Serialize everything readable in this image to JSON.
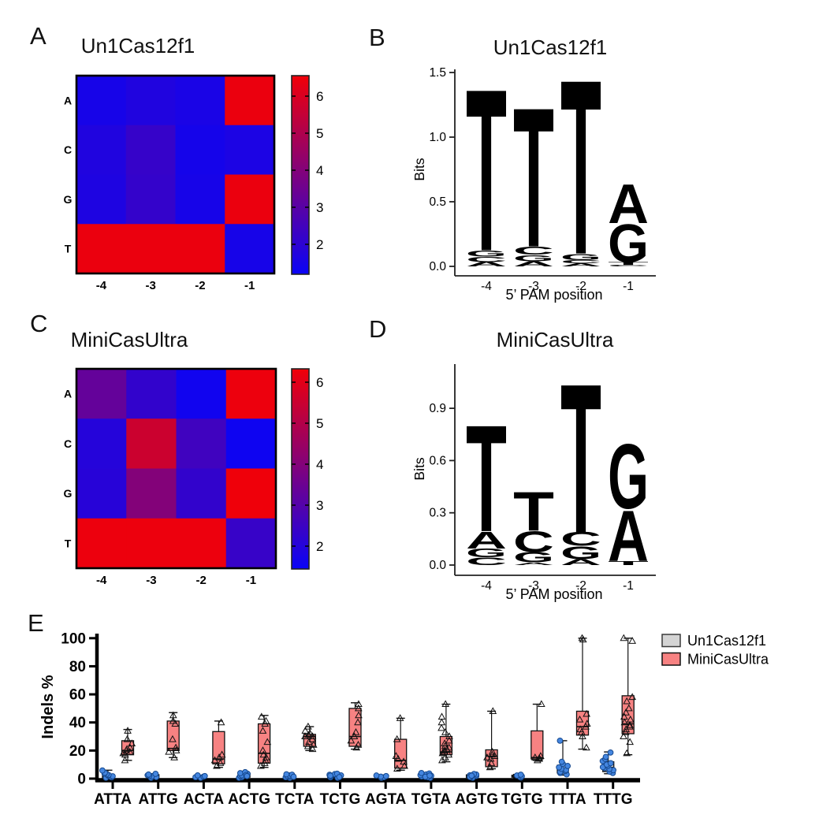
{
  "panels": {
    "A": {
      "label": "A"
    },
    "B": {
      "label": "B"
    },
    "C": {
      "label": "C"
    },
    "D": {
      "label": "D"
    },
    "E": {
      "label": "E"
    }
  },
  "legend": {
    "items": [
      {
        "label": "Un1Cas12f1",
        "color": "#d4d4d4",
        "border": "#3a3a3a"
      },
      {
        "label": "MiniCasUltra",
        "color": "#f78282",
        "border": "#111111"
      }
    ]
  },
  "logo_colors": {
    "A": "#168a48",
    "C": "#2b5f9e",
    "G": "#e9a63b",
    "T": "#c62f41"
  },
  "chart_data": [
    {
      "type": "heatmap",
      "panel": "A",
      "title": "Un1Cas12f1",
      "rows": [
        "A",
        "C",
        "G",
        "T"
      ],
      "cols": [
        "-4",
        "-3",
        "-2",
        "-1"
      ],
      "values": [
        [
          1.5,
          1.7,
          1.55,
          6.4
        ],
        [
          1.7,
          2.2,
          1.45,
          1.6
        ],
        [
          1.65,
          2.15,
          1.5,
          6.4
        ],
        [
          6.4,
          6.4,
          6.4,
          1.5
        ]
      ],
      "scale": {
        "vmin": 1.19,
        "vmax": 6.53,
        "ticks": [
          2,
          3,
          4,
          5,
          6
        ],
        "low_color": "#0a04f6",
        "high_color": "#f10008"
      }
    },
    {
      "type": "logo",
      "panel": "B",
      "title": "Un1Cas12f1",
      "ylabel": "Bits",
      "xlabel": "5’ PAM position",
      "yticks": [
        "0.0",
        "0.5",
        "1.0",
        "1.5"
      ],
      "positions": [
        "-4",
        "-3",
        "-2",
        "-1"
      ],
      "stacks": [
        [
          [
            "A",
            0.035
          ],
          [
            "C",
            0.04
          ],
          [
            "G",
            0.05
          ],
          [
            "T",
            1.29
          ]
        ],
        [
          [
            "A",
            0.04
          ],
          [
            "G",
            0.05
          ],
          [
            "C",
            0.065
          ],
          [
            "T",
            1.11
          ]
        ],
        [
          [
            "A",
            0.025
          ],
          [
            "C",
            0.025
          ],
          [
            "G",
            0.05
          ],
          [
            "T",
            1.39
          ]
        ],
        [
          [
            "C",
            0.01
          ],
          [
            "T",
            0.025
          ],
          [
            "G",
            0.3
          ],
          [
            "A",
            0.31
          ]
        ]
      ]
    },
    {
      "type": "heatmap",
      "panel": "C",
      "title": "MiniCasUltra",
      "rows": [
        "A",
        "C",
        "G",
        "T"
      ],
      "cols": [
        "-4",
        "-3",
        "-2",
        "-1"
      ],
      "values": [
        [
          3.3,
          2.2,
          1.45,
          6.35
        ],
        [
          1.9,
          5.6,
          2.5,
          1.4
        ],
        [
          1.95,
          4.0,
          2.2,
          6.4
        ],
        [
          6.35,
          6.35,
          6.35,
          2.3
        ]
      ],
      "scale": {
        "vmin": 1.3,
        "vmax": 6.45,
        "ticks": [
          2,
          3,
          4,
          5,
          6
        ],
        "low_color": "#0a04f6",
        "high_color": "#f10008"
      }
    },
    {
      "type": "logo",
      "panel": "D",
      "title": "MiniCasUltra",
      "ylabel": "Bits",
      "xlabel": "5’ PAM position",
      "yticks": [
        "0.0",
        "0.3",
        "0.6",
        "0.9"
      ],
      "positions": [
        "-4",
        "-3",
        "-2",
        "-1"
      ],
      "stacks": [
        [
          [
            "C",
            0.045
          ],
          [
            "G",
            0.05
          ],
          [
            "A",
            0.1
          ],
          [
            "T",
            0.63
          ]
        ],
        [
          [
            "A",
            0.015
          ],
          [
            "G",
            0.06
          ],
          [
            "C",
            0.125
          ],
          [
            "T",
            0.23
          ]
        ],
        [
          [
            "A",
            0.035
          ],
          [
            "G",
            0.075
          ],
          [
            "C",
            0.08
          ],
          [
            "T",
            0.88
          ]
        ],
        [
          [
            "T",
            0.025
          ],
          [
            "A",
            0.3
          ],
          [
            "G",
            0.38
          ]
        ]
      ]
    },
    {
      "type": "box",
      "panel": "E",
      "ylabel": "Indels %",
      "ylim": [
        0,
        100
      ],
      "yticks": [
        0,
        20,
        40,
        60,
        80,
        100
      ],
      "categories": [
        "ATTA",
        "ATTG",
        "ACTA",
        "ACTG",
        "TCTA",
        "TCTG",
        "AGTA",
        "TGTA",
        "AGTG",
        "TGTG",
        "TTTA",
        "TTTG"
      ],
      "series": [
        {
          "name": "Un1Cas12f1",
          "box_color": "#d4d4d4",
          "marker": "circle",
          "point_color": "#4486e0",
          "point_edge": "#16498f",
          "boxes": [
            {
              "q1": 0.5,
              "med": 1.5,
              "q3": 3.0,
              "lo": 0.2,
              "hi": 6.0
            },
            {
              "q1": 1.0,
              "med": 2.0,
              "q3": 2.8,
              "lo": 0.5,
              "hi": 3.5
            },
            {
              "q1": 0.8,
              "med": 1.4,
              "q3": 2.0,
              "lo": 0.5,
              "hi": 2.4
            },
            {
              "q1": 1.0,
              "med": 2.2,
              "q3": 3.6,
              "lo": 0.3,
              "hi": 5.0
            },
            {
              "q1": 0.8,
              "med": 1.6,
              "q3": 2.6,
              "lo": 0.4,
              "hi": 3.2
            },
            {
              "q1": 0.8,
              "med": 1.8,
              "q3": 2.8,
              "lo": 0.3,
              "hi": 3.6
            },
            {
              "q1": 0.8,
              "med": 1.4,
              "q3": 2.0,
              "lo": 0.5,
              "hi": 2.3
            },
            {
              "q1": 0.8,
              "med": 1.8,
              "q3": 3.0,
              "lo": 0.4,
              "hi": 4.2
            },
            {
              "q1": 0.8,
              "med": 1.7,
              "q3": 2.7,
              "lo": 0.4,
              "hi": 3.4
            },
            {
              "q1": 1.0,
              "med": 1.7,
              "q3": 2.4,
              "lo": 0.7,
              "hi": 3.0
            },
            {
              "q1": 4.0,
              "med": 6.0,
              "q3": 9.5,
              "lo": 2.5,
              "hi": 27.0
            },
            {
              "q1": 5.0,
              "med": 8.0,
              "q3": 12.0,
              "lo": 3.5,
              "hi": 19.0
            }
          ],
          "points": [
            [
              0.4,
              0.9,
              1.3,
              1.7,
              2.1,
              2.6,
              3.1,
              3.6,
              4.2,
              5.8
            ],
            [
              0.6,
              1.1,
              1.6,
              2.0,
              2.4,
              2.9,
              3.4
            ],
            [
              0.6,
              1.0,
              1.4,
              1.8,
              2.3
            ],
            [
              0.4,
              0.9,
              1.5,
              2.0,
              2.4,
              2.9,
              3.4,
              3.9,
              4.6,
              2.6,
              1.8
            ],
            [
              0.5,
              1.0,
              1.5,
              1.9,
              2.3,
              2.8,
              3.1,
              1.3
            ],
            [
              0.4,
              0.9,
              1.4,
              1.9,
              2.3,
              2.7,
              3.2,
              3.5,
              1.1,
              2.1
            ],
            [
              0.6,
              1.0,
              1.4,
              1.8,
              2.2
            ],
            [
              0.5,
              1.0,
              1.5,
              2.0,
              2.5,
              3.0,
              3.6,
              4.0,
              1.3,
              2.2
            ],
            [
              0.5,
              1.0,
              1.5,
              1.9,
              2.4,
              2.9,
              3.3,
              1.2,
              2.1
            ],
            [
              0.8,
              1.2,
              1.7,
              2.2,
              2.8
            ],
            [
              3.0,
              4.0,
              4.8,
              5.5,
              6.2,
              7.0,
              8.0,
              9.0,
              10.5,
              12.0,
              27.0
            ],
            [
              4.0,
              5.0,
              6.0,
              6.8,
              7.5,
              8.2,
              9.0,
              10.0,
              11.0,
              12.5,
              14.0,
              15.5,
              18.6
            ]
          ]
        },
        {
          "name": "MiniCasUltra",
          "box_color": "#f78282",
          "marker": "triangle",
          "point_color": "none",
          "point_edge": "#111111",
          "boxes": [
            {
              "q1": 17.0,
              "med": 20.0,
              "q3": 27.0,
              "lo": 13.0,
              "hi": 35.0
            },
            {
              "q1": 20.0,
              "med": 21.5,
              "q3": 41.0,
              "lo": 15.0,
              "hi": 47.0
            },
            {
              "q1": 10.5,
              "med": 14.0,
              "q3": 33.5,
              "lo": 8.0,
              "hi": 41.0
            },
            {
              "q1": 11.0,
              "med": 18.0,
              "q3": 39.0,
              "lo": 8.0,
              "hi": 45.0
            },
            {
              "q1": 23.0,
              "med": 30.0,
              "q3": 31.5,
              "lo": 20.0,
              "hi": 37.0
            },
            {
              "q1": 23.0,
              "med": 30.0,
              "q3": 50.0,
              "lo": 21.0,
              "hi": 54.0
            },
            {
              "q1": 7.5,
              "med": 13.0,
              "q3": 28.0,
              "lo": 6.0,
              "hi": 43.0
            },
            {
              "q1": 17.0,
              "med": 19.0,
              "q3": 30.0,
              "lo": 12.0,
              "hi": 53.0
            },
            {
              "q1": 8.5,
              "med": 16.0,
              "q3": 20.5,
              "lo": 7.0,
              "hi": 48.0
            },
            {
              "q1": 14.0,
              "med": 15.0,
              "q3": 34.0,
              "lo": 13.0,
              "hi": 53.0
            },
            {
              "q1": 31.0,
              "med": 37.0,
              "q3": 48.0,
              "lo": 21.0,
              "hi": 100.0
            },
            {
              "q1": 32.0,
              "med": 39.0,
              "q3": 59.0,
              "lo": 17.0,
              "hi": 100.0
            }
          ],
          "points": [
            [
              13,
              17,
              18,
              19,
              20,
              21,
              22,
              25,
              28,
              34
            ],
            [
              15,
              19,
              20,
              22,
              28,
              39,
              41,
              45
            ],
            [
              9,
              11,
              13,
              15,
              17,
              40
            ],
            [
              9,
              11,
              13,
              15,
              17,
              20,
              26,
              34,
              39,
              41,
              44
            ],
            [
              21,
              23,
              24,
              26,
              28,
              30,
              30,
              31,
              32,
              34,
              37
            ],
            [
              22,
              24,
              27,
              30,
              33,
              40,
              45,
              50,
              53
            ],
            [
              7,
              9,
              12,
              14,
              16,
              28,
              43
            ],
            [
              13,
              15,
              17,
              18,
              19,
              20,
              21,
              22,
              23,
              25,
              27,
              30,
              33,
              36,
              40,
              44,
              53
            ],
            [
              8,
              11,
              14,
              15,
              16,
              17,
              19,
              48
            ],
            [
              13,
              14,
              14.5,
              15,
              16,
              53
            ],
            [
              22,
              30,
              33,
              35,
              37,
              39,
              42,
              46,
              99,
              100
            ],
            [
              18,
              26,
              30,
              33,
              35,
              37,
              38,
              40,
              42,
              44,
              47,
              50,
              55,
              58,
              98,
              100
            ]
          ]
        }
      ]
    }
  ]
}
